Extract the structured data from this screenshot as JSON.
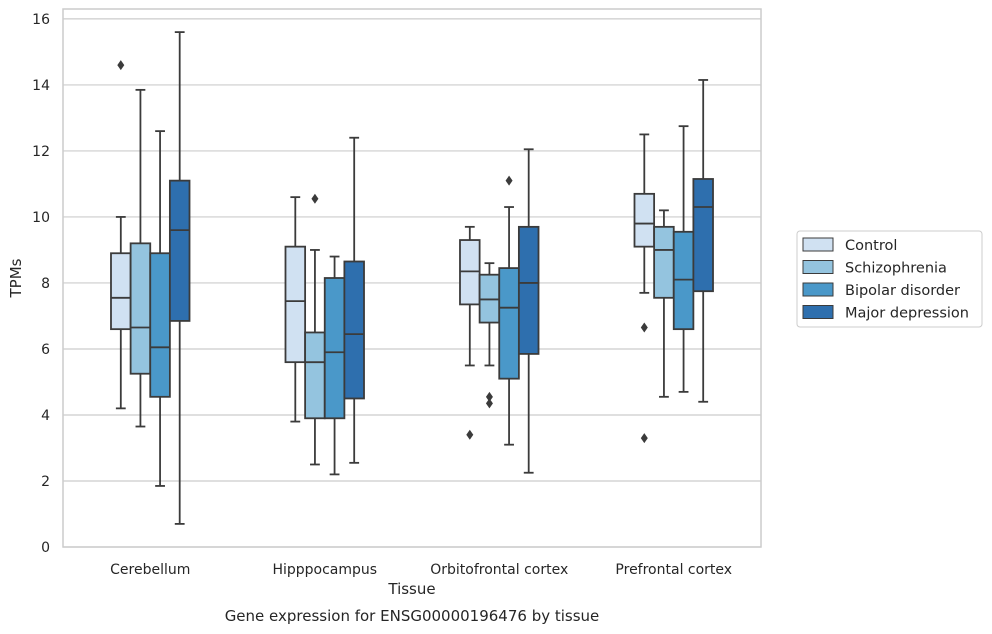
{
  "chart_data": {
    "type": "boxplot",
    "title": "Gene expression for ENSG00000196476 by tissue",
    "xlabel": "Tissue",
    "ylabel": "TPMs",
    "ylim": [
      0,
      16.3
    ],
    "yticks": [
      0,
      2,
      4,
      6,
      8,
      10,
      12,
      14,
      16
    ],
    "grid": "horizontal",
    "legend_position": "right",
    "categories": [
      "Cerebellum",
      "Hipppocampus",
      "Orbitofrontal cortex",
      "Prefrontal cortex"
    ],
    "series": [
      {
        "name": "Control",
        "color": "#d0e1f2",
        "boxes": [
          {
            "whisker_low": 4.2,
            "q1": 6.6,
            "median": 7.55,
            "q3": 8.9,
            "whisker_high": 10.0,
            "outliers": [
              14.6
            ]
          },
          {
            "whisker_low": 3.8,
            "q1": 5.6,
            "median": 7.45,
            "q3": 9.1,
            "whisker_high": 10.6,
            "outliers": []
          },
          {
            "whisker_low": 5.5,
            "q1": 7.35,
            "median": 8.35,
            "q3": 9.3,
            "whisker_high": 9.7,
            "outliers": [
              3.4
            ]
          },
          {
            "whisker_low": 7.7,
            "q1": 9.1,
            "median": 9.8,
            "q3": 10.7,
            "whisker_high": 12.5,
            "outliers": [
              6.65,
              3.3
            ]
          }
        ]
      },
      {
        "name": "Schizophrenia",
        "color": "#94c4df",
        "boxes": [
          {
            "whisker_low": 3.65,
            "q1": 5.25,
            "median": 6.65,
            "q3": 9.2,
            "whisker_high": 13.85,
            "outliers": []
          },
          {
            "whisker_low": 2.5,
            "q1": 3.9,
            "median": 5.6,
            "q3": 6.5,
            "whisker_high": 9.0,
            "outliers": [
              10.55
            ]
          },
          {
            "whisker_low": 5.5,
            "q1": 6.8,
            "median": 7.5,
            "q3": 8.25,
            "whisker_high": 8.6,
            "outliers": [
              4.55,
              4.35
            ]
          },
          {
            "whisker_low": 4.55,
            "q1": 7.55,
            "median": 9.0,
            "q3": 9.7,
            "whisker_high": 10.2,
            "outliers": []
          }
        ]
      },
      {
        "name": "Bipolar disorder",
        "color": "#4a98c9",
        "boxes": [
          {
            "whisker_low": 1.85,
            "q1": 4.55,
            "median": 6.05,
            "q3": 8.9,
            "whisker_high": 12.6,
            "outliers": []
          },
          {
            "whisker_low": 2.2,
            "q1": 3.9,
            "median": 5.9,
            "q3": 8.15,
            "whisker_high": 8.8,
            "outliers": []
          },
          {
            "whisker_low": 3.1,
            "q1": 5.1,
            "median": 7.25,
            "q3": 8.45,
            "whisker_high": 10.3,
            "outliers": [
              11.1
            ]
          },
          {
            "whisker_low": 4.7,
            "q1": 6.6,
            "median": 8.1,
            "q3": 9.55,
            "whisker_high": 12.75,
            "outliers": []
          }
        ]
      },
      {
        "name": "Major depression",
        "color": "#2e6fae",
        "boxes": [
          {
            "whisker_low": 0.7,
            "q1": 6.85,
            "median": 9.6,
            "q3": 11.1,
            "whisker_high": 15.6,
            "outliers": []
          },
          {
            "whisker_low": 2.55,
            "q1": 4.5,
            "median": 6.45,
            "q3": 8.65,
            "whisker_high": 12.4,
            "outliers": []
          },
          {
            "whisker_low": 2.25,
            "q1": 5.85,
            "median": 8.0,
            "q3": 9.7,
            "whisker_high": 12.05,
            "outliers": []
          },
          {
            "whisker_low": 4.4,
            "q1": 7.75,
            "median": 10.3,
            "q3": 11.15,
            "whisker_high": 14.15,
            "outliers": []
          }
        ]
      }
    ]
  }
}
